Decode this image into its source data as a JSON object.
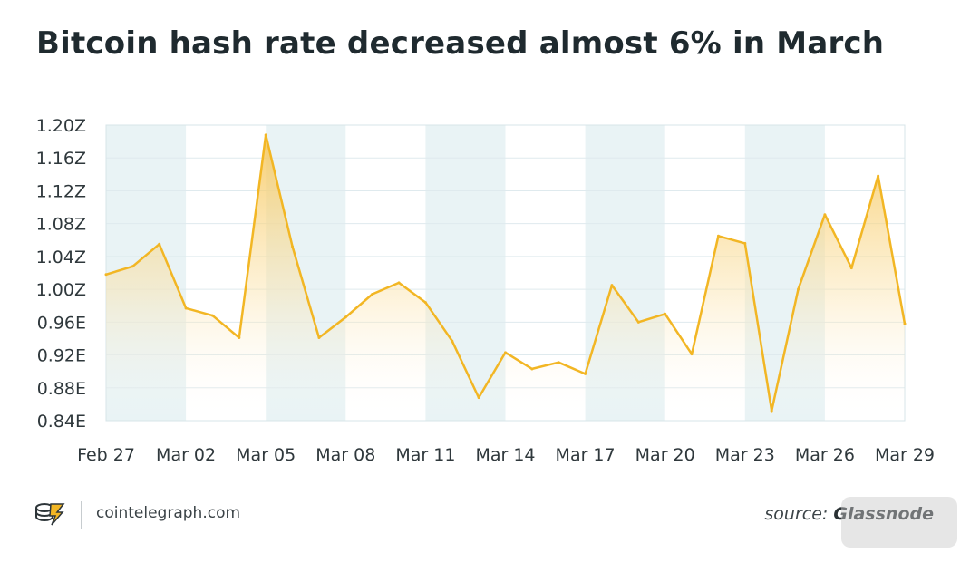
{
  "title": "Bitcoin hash rate decreased almost 6% in March",
  "footer": {
    "site": "cointelegraph.com",
    "source_prefix": "source: ",
    "source_name": "Glassnode"
  },
  "colors": {
    "line": "#f2b624",
    "fill_top": "#f6c453",
    "band": "#e9f3f5",
    "grid": "#dfeaee",
    "text": "#2f383c"
  },
  "chart_data": {
    "type": "area",
    "title": "Bitcoin hash rate decreased almost 6% in March",
    "xlabel": "",
    "ylabel": "",
    "ylim": [
      0.84,
      1.2
    ],
    "y_ticks": [
      0.84,
      0.88,
      0.92,
      0.96,
      1.0,
      1.04,
      1.08,
      1.12,
      1.16,
      1.2
    ],
    "y_tick_labels": [
      "0.84E",
      "0.88E",
      "0.92E",
      "0.96E",
      "1.00Z",
      "1.04Z",
      "1.08Z",
      "1.12Z",
      "1.16Z",
      "1.20Z"
    ],
    "x_tick_labels": [
      "Feb 27",
      "Mar 02",
      "Mar 05",
      "Mar 08",
      "Mar 11",
      "Mar 14",
      "Mar 17",
      "Mar 20",
      "Mar 23",
      "Mar 26",
      "Mar 29"
    ],
    "x": [
      "Feb 27",
      "Feb 28",
      "Mar 01",
      "Mar 02",
      "Mar 03",
      "Mar 04",
      "Mar 05",
      "Mar 06",
      "Mar 07",
      "Mar 08",
      "Mar 09",
      "Mar 10",
      "Mar 11",
      "Mar 12",
      "Mar 13",
      "Mar 14",
      "Mar 15",
      "Mar 16",
      "Mar 17",
      "Mar 18",
      "Mar 19",
      "Mar 20",
      "Mar 21",
      "Mar 22",
      "Mar 23",
      "Mar 24",
      "Mar 25",
      "Mar 26",
      "Mar 27",
      "Mar 28",
      "Mar 29"
    ],
    "series": [
      {
        "values": [
          1.018,
          1.028,
          1.055,
          0.977,
          0.968,
          0.941,
          1.188,
          1.052,
          0.941,
          0.966,
          0.994,
          1.008,
          0.984,
          0.937,
          0.868,
          0.923,
          0.903,
          0.911,
          0.897,
          1.005,
          0.96,
          0.97,
          0.921,
          1.065,
          1.056,
          0.852,
          1.0,
          1.091,
          1.026,
          1.138,
          0.958
        ]
      }
    ],
    "grid": true,
    "legend": "none"
  }
}
